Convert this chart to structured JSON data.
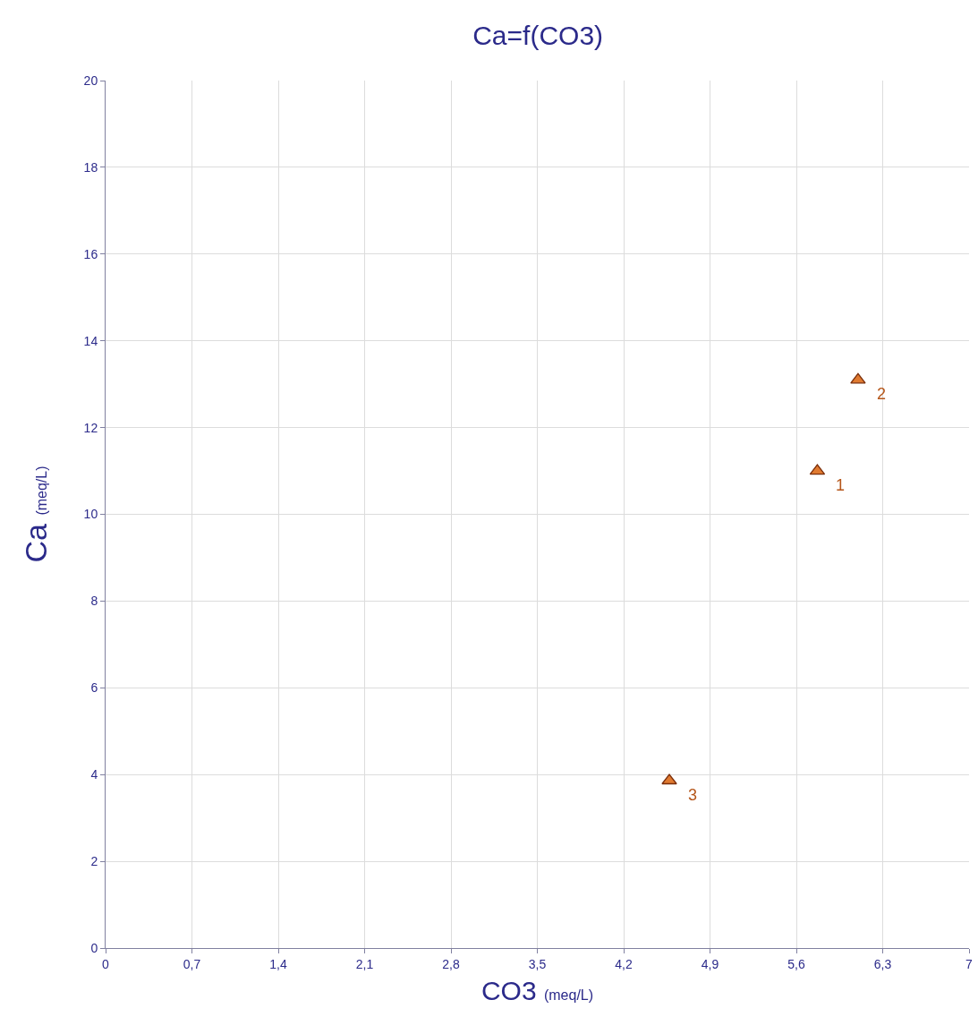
{
  "chart_data": {
    "type": "scatter",
    "title": "Ca=f(CO3)",
    "xlabel": "CO3 (meq/L)",
    "ylabel": "Ca (meq/L)",
    "x": [
      5.77,
      6.1,
      4.57
    ],
    "series": [
      {
        "color": "#e07a30",
        "values": [
          11.0,
          13.1,
          3.86
        ]
      }
    ],
    "marker": "triangle",
    "xlim": [
      0,
      7
    ],
    "xticks": [
      0,
      {
        "value": 0.7,
        "label": "0,7"
      },
      {
        "value": 1.4,
        "label": "1,4"
      },
      {
        "value": 2.1,
        "label": "2,1"
      },
      {
        "value": 2.8,
        "label": "2,8"
      },
      {
        "value": 3.5,
        "label": "3,5"
      },
      {
        "value": 4.2,
        "label": "4,2"
      },
      {
        "value": 4.9,
        "label": "4,9"
      },
      {
        "value": 5.6,
        "label": "5,6"
      },
      {
        "value": 6.3,
        "label": "6,3"
      },
      7
    ],
    "ylim": [
      0,
      20
    ],
    "yticks": [
      0,
      2,
      4,
      6,
      8,
      10,
      12,
      14,
      16,
      18,
      20
    ],
    "grid": true,
    "annotations": [
      {
        "text": "1",
        "x": 5.77,
        "y": 11.0
      },
      {
        "text": "2",
        "x": 6.1,
        "y": 13.1
      },
      {
        "text": "3",
        "x": 4.57,
        "y": 3.86
      }
    ]
  }
}
